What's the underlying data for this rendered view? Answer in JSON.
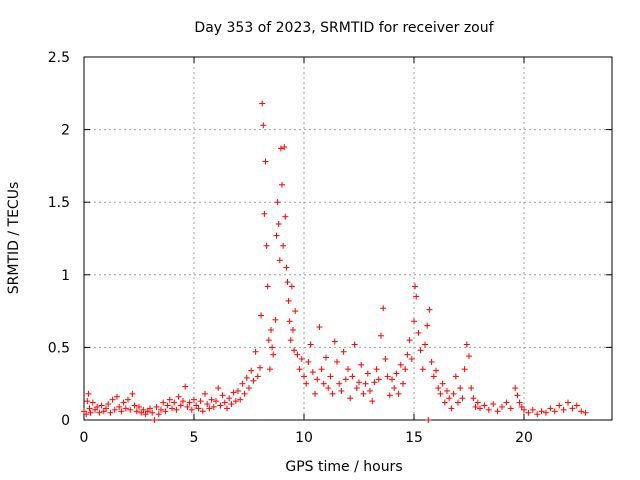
{
  "chart_data": {
    "type": "scatter",
    "title": "Day 353 of 2023, SRMTID for receiver zouf",
    "xlabel": "GPS time / hours",
    "ylabel": "SRMTID / TECUs",
    "xlim": [
      0,
      24
    ],
    "ylim": [
      0,
      2.5
    ],
    "xticks": [
      0,
      5,
      10,
      15,
      20
    ],
    "xtick_labels": [
      "0",
      "5",
      "10",
      "15",
      "20"
    ],
    "yticks": [
      0,
      0.5,
      1,
      1.5,
      2,
      2.5
    ],
    "ytick_labels": [
      "0",
      "0.5",
      "1",
      "1.5",
      "2",
      "2.5"
    ],
    "grid": true,
    "marker": "+",
    "series": [
      {
        "name": "SRMTID",
        "color": "#ff0000",
        "points": [
          [
            0.0,
            0.06
          ],
          [
            0.1,
            0.04
          ],
          [
            0.15,
            0.13
          ],
          [
            0.2,
            0.18
          ],
          [
            0.25,
            0.08
          ],
          [
            0.3,
            0.05
          ],
          [
            0.4,
            0.12
          ],
          [
            0.5,
            0.07
          ],
          [
            0.6,
            0.09
          ],
          [
            0.7,
            0.05
          ],
          [
            0.8,
            0.1
          ],
          [
            0.9,
            0.06
          ],
          [
            1.0,
            0.08
          ],
          [
            1.1,
            0.11
          ],
          [
            1.2,
            0.05
          ],
          [
            1.3,
            0.14
          ],
          [
            1.4,
            0.07
          ],
          [
            1.5,
            0.16
          ],
          [
            1.6,
            0.09
          ],
          [
            1.7,
            0.06
          ],
          [
            1.8,
            0.12
          ],
          [
            1.9,
            0.08
          ],
          [
            2.0,
            0.14
          ],
          [
            2.1,
            0.07
          ],
          [
            2.2,
            0.18
          ],
          [
            2.3,
            0.1
          ],
          [
            2.4,
            0.06
          ],
          [
            2.5,
            0.09
          ],
          [
            2.6,
            0.05
          ],
          [
            2.7,
            0.07
          ],
          [
            2.8,
            0.04
          ],
          [
            2.9,
            0.06
          ],
          [
            3.0,
            0.08
          ],
          [
            3.1,
            0.05
          ],
          [
            3.2,
            0.0
          ],
          [
            3.3,
            0.09
          ],
          [
            3.4,
            0.04
          ],
          [
            3.5,
            0.07
          ],
          [
            3.6,
            0.12
          ],
          [
            3.7,
            0.06
          ],
          [
            3.8,
            0.1
          ],
          [
            3.9,
            0.14
          ],
          [
            4.0,
            0.08
          ],
          [
            4.1,
            0.12
          ],
          [
            4.2,
            0.07
          ],
          [
            4.3,
            0.16
          ],
          [
            4.4,
            0.1
          ],
          [
            4.5,
            0.13
          ],
          [
            4.6,
            0.23
          ],
          [
            4.7,
            0.09
          ],
          [
            4.8,
            0.12
          ],
          [
            4.9,
            0.07
          ],
          [
            5.0,
            0.14
          ],
          [
            5.1,
            0.1
          ],
          [
            5.2,
            0.08
          ],
          [
            5.3,
            0.13
          ],
          [
            5.4,
            0.06
          ],
          [
            5.5,
            0.18
          ],
          [
            5.6,
            0.11
          ],
          [
            5.7,
            0.08
          ],
          [
            5.8,
            0.14
          ],
          [
            5.9,
            0.09
          ],
          [
            6.0,
            0.13
          ],
          [
            6.1,
            0.22
          ],
          [
            6.2,
            0.1
          ],
          [
            6.3,
            0.17
          ],
          [
            6.4,
            0.12
          ],
          [
            6.5,
            0.08
          ],
          [
            6.6,
            0.15
          ],
          [
            6.7,
            0.11
          ],
          [
            6.8,
            0.19
          ],
          [
            6.9,
            0.13
          ],
          [
            7.0,
            0.2
          ],
          [
            7.1,
            0.14
          ],
          [
            7.2,
            0.25
          ],
          [
            7.3,
            0.18
          ],
          [
            7.4,
            0.29
          ],
          [
            7.5,
            0.22
          ],
          [
            7.6,
            0.34
          ],
          [
            7.7,
            0.27
          ],
          [
            7.8,
            0.47
          ],
          [
            7.9,
            0.3
          ],
          [
            8.0,
            0.36
          ],
          [
            8.05,
            0.72
          ],
          [
            8.1,
            2.18
          ],
          [
            8.15,
            2.03
          ],
          [
            8.2,
            1.42
          ],
          [
            8.25,
            1.78
          ],
          [
            8.3,
            1.2
          ],
          [
            8.35,
            0.92
          ],
          [
            8.4,
            0.55
          ],
          [
            8.45,
            0.35
          ],
          [
            8.5,
            0.62
          ],
          [
            8.55,
            0.5
          ],
          [
            8.6,
            0.45
          ],
          [
            8.7,
            0.69
          ],
          [
            8.75,
            1.27
          ],
          [
            8.8,
            1.5
          ],
          [
            8.85,
            1.35
          ],
          [
            8.9,
            1.1
          ],
          [
            8.95,
            1.87
          ],
          [
            9.0,
            1.62
          ],
          [
            9.05,
            1.2
          ],
          [
            9.1,
            1.88
          ],
          [
            9.15,
            1.4
          ],
          [
            9.2,
            1.05
          ],
          [
            9.25,
            0.95
          ],
          [
            9.3,
            0.82
          ],
          [
            9.35,
            0.68
          ],
          [
            9.4,
            0.55
          ],
          [
            9.45,
            0.92
          ],
          [
            9.5,
            0.62
          ],
          [
            9.55,
            0.48
          ],
          [
            9.6,
            0.75
          ],
          [
            9.7,
            0.45
          ],
          [
            9.8,
            0.35
          ],
          [
            9.9,
            0.42
          ],
          [
            10.0,
            0.3
          ],
          [
            10.1,
            0.25
          ],
          [
            10.2,
            0.4
          ],
          [
            10.3,
            0.52
          ],
          [
            10.4,
            0.33
          ],
          [
            10.5,
            0.18
          ],
          [
            10.6,
            0.28
          ],
          [
            10.7,
            0.64
          ],
          [
            10.8,
            0.35
          ],
          [
            10.9,
            0.25
          ],
          [
            11.0,
            0.43
          ],
          [
            11.1,
            0.22
          ],
          [
            11.2,
            0.3
          ],
          [
            11.3,
            0.18
          ],
          [
            11.4,
            0.54
          ],
          [
            11.5,
            0.4
          ],
          [
            11.6,
            0.25
          ],
          [
            11.7,
            0.2
          ],
          [
            11.8,
            0.47
          ],
          [
            11.9,
            0.28
          ],
          [
            12.0,
            0.35
          ],
          [
            12.1,
            0.15
          ],
          [
            12.2,
            0.3
          ],
          [
            12.3,
            0.52
          ],
          [
            12.4,
            0.22
          ],
          [
            12.5,
            0.26
          ],
          [
            12.6,
            0.38
          ],
          [
            12.7,
            0.18
          ],
          [
            12.8,
            0.25
          ],
          [
            12.9,
            0.32
          ],
          [
            13.0,
            0.2
          ],
          [
            13.1,
            0.13
          ],
          [
            13.2,
            0.26
          ],
          [
            13.3,
            0.35
          ],
          [
            13.4,
            0.28
          ],
          [
            13.5,
            0.58
          ],
          [
            13.6,
            0.77
          ],
          [
            13.7,
            0.42
          ],
          [
            13.8,
            0.3
          ],
          [
            13.9,
            0.17
          ],
          [
            14.0,
            0.28
          ],
          [
            14.1,
            0.22
          ],
          [
            14.2,
            0.32
          ],
          [
            14.3,
            0.18
          ],
          [
            14.4,
            0.38
          ],
          [
            14.5,
            0.25
          ],
          [
            14.6,
            0.35
          ],
          [
            14.7,
            0.45
          ],
          [
            14.8,
            0.55
          ],
          [
            14.9,
            0.42
          ],
          [
            15.0,
            0.68
          ],
          [
            15.05,
            0.92
          ],
          [
            15.1,
            0.85
          ],
          [
            15.2,
            0.6
          ],
          [
            15.3,
            0.48
          ],
          [
            15.4,
            0.35
          ],
          [
            15.5,
            0.52
          ],
          [
            15.6,
            0.65
          ],
          [
            15.65,
            0.0
          ],
          [
            15.7,
            0.76
          ],
          [
            15.8,
            0.4
          ],
          [
            15.9,
            0.3
          ],
          [
            16.0,
            0.34
          ],
          [
            16.1,
            0.22
          ],
          [
            16.2,
            0.18
          ],
          [
            16.3,
            0.25
          ],
          [
            16.4,
            0.12
          ],
          [
            16.5,
            0.2
          ],
          [
            16.6,
            0.15
          ],
          [
            16.7,
            0.08
          ],
          [
            16.8,
            0.18
          ],
          [
            16.9,
            0.3
          ],
          [
            17.0,
            0.12
          ],
          [
            17.1,
            0.22
          ],
          [
            17.2,
            0.15
          ],
          [
            17.3,
            0.35
          ],
          [
            17.4,
            0.52
          ],
          [
            17.5,
            0.44
          ],
          [
            17.6,
            0.22
          ],
          [
            17.7,
            0.15
          ],
          [
            17.8,
            0.09
          ],
          [
            17.9,
            0.12
          ],
          [
            18.0,
            0.08
          ],
          [
            18.2,
            0.1
          ],
          [
            18.4,
            0.07
          ],
          [
            18.6,
            0.11
          ],
          [
            18.8,
            0.06
          ],
          [
            19.0,
            0.09
          ],
          [
            19.2,
            0.12
          ],
          [
            19.4,
            0.08
          ],
          [
            19.6,
            0.22
          ],
          [
            19.7,
            0.17
          ],
          [
            19.8,
            0.12
          ],
          [
            19.9,
            0.09
          ],
          [
            20.0,
            0.07
          ],
          [
            20.2,
            0.05
          ],
          [
            20.4,
            0.07
          ],
          [
            20.6,
            0.04
          ],
          [
            20.8,
            0.06
          ],
          [
            21.0,
            0.05
          ],
          [
            21.2,
            0.08
          ],
          [
            21.4,
            0.06
          ],
          [
            21.6,
            0.1
          ],
          [
            21.8,
            0.07
          ],
          [
            22.0,
            0.12
          ],
          [
            22.2,
            0.08
          ],
          [
            22.4,
            0.1
          ],
          [
            22.6,
            0.06
          ],
          [
            22.8,
            0.05
          ]
        ]
      }
    ]
  }
}
